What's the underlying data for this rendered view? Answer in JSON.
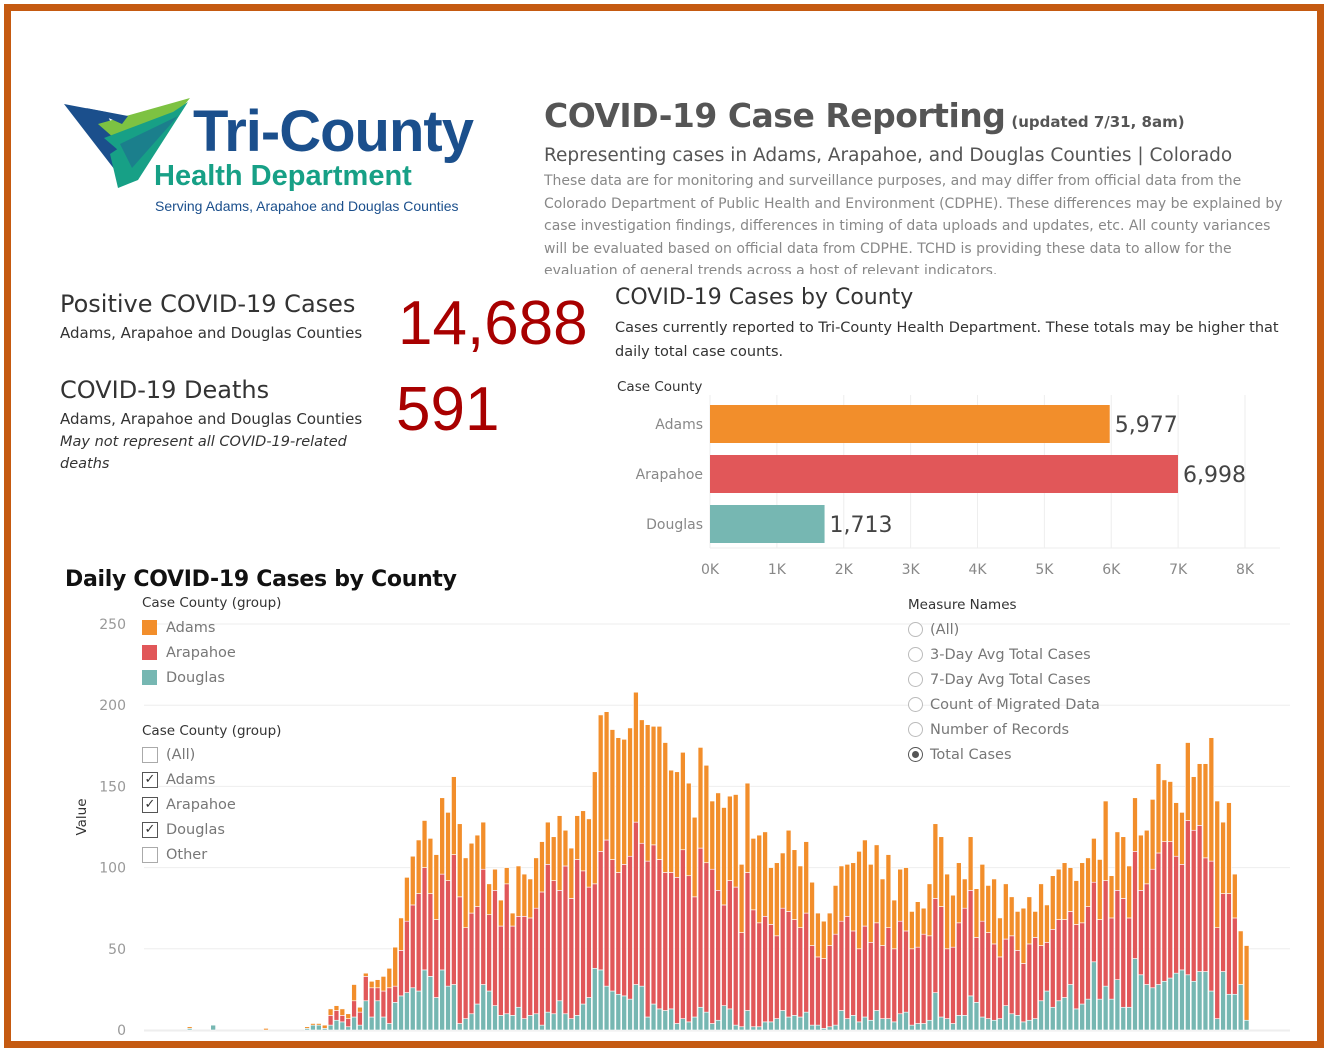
{
  "colors": {
    "border": "#C55A11",
    "kpi_value": "#A80000",
    "adams": "#F28E2B",
    "arapahoe": "#E15759",
    "douglas": "#76B7B2"
  },
  "logo": {
    "name": "Tri-County",
    "subname": "Health Department",
    "tagline": "Serving Adams, Arapahoe and Douglas Counties",
    "icon": "chevron-stripes-logo-icon"
  },
  "header": {
    "title": "COVID-19 Case Reporting",
    "updated": "(updated 7/31, 8am)",
    "subtitle": "Representing cases in Adams, Arapahoe, and Douglas Counties | Colorado",
    "description": "These data are for monitoring and surveillance purposes, and may differ from official data from the Colorado Department of Public Health and Environment (CDPHE). These differences may be explained by case investigation findings, differences in timing of data uploads and updates, etc. All county variances will be evaluated based on official data from CDPHE. TCHD is providing these data to allow for the evaluation of general trends across a host of relevant indicators."
  },
  "kpis": {
    "cases": {
      "title": "Positive COVID-19 Cases",
      "subtitle": "Adams, Arapahoe and Douglas Counties",
      "value": "14,688"
    },
    "deaths": {
      "title": "COVID-19 Deaths",
      "subtitle": "Adams, Arapahoe and Douglas Counties",
      "note": "May not represent all COVID-19-related deaths",
      "value": "591"
    }
  },
  "county_chart": {
    "title": "COVID-19 Cases by County",
    "subtitle": "Cases currently reported to Tri-County Health Department. These totals may be higher that daily total case counts."
  },
  "daily_chart": {
    "title": "Daily COVID-19  Cases by County",
    "legend": {
      "header": "Case County (group)",
      "items": [
        "Adams",
        "Arapahoe",
        "Douglas"
      ]
    },
    "filter": {
      "header": "Case County (group)",
      "items": [
        {
          "label": "(All)",
          "checked": false
        },
        {
          "label": "Adams",
          "checked": true
        },
        {
          "label": "Arapahoe",
          "checked": true
        },
        {
          "label": "Douglas",
          "checked": true
        },
        {
          "label": "Other",
          "checked": false
        }
      ]
    },
    "measure_names": {
      "header": "Measure Names",
      "options": [
        {
          "label": "(All)",
          "selected": false
        },
        {
          "label": "3-Day Avg Total Cases",
          "selected": false
        },
        {
          "label": "7-Day Avg Total Cases",
          "selected": false
        },
        {
          "label": "Count of Migrated Data",
          "selected": false
        },
        {
          "label": "Number of Records",
          "selected": false
        },
        {
          "label": "Total Cases",
          "selected": true
        }
      ]
    }
  },
  "chart_data": [
    {
      "type": "bar",
      "orientation": "horizontal",
      "title": "COVID-19 Cases by County",
      "ylabel": "Case County",
      "xlabel": "",
      "categories": [
        "Adams",
        "Arapahoe",
        "Douglas"
      ],
      "values": [
        5977,
        6998,
        1713
      ],
      "value_labels": [
        "5,977",
        "6,998",
        "1,713"
      ],
      "xlim": [
        0,
        8000
      ],
      "xticks": [
        "0K",
        "1K",
        "2K",
        "3K",
        "4K",
        "5K",
        "6K",
        "7K",
        "8K"
      ],
      "grid": true
    },
    {
      "type": "bar",
      "stacked": true,
      "title": "Daily COVID-19  Cases by County",
      "xlabel": "",
      "ylabel": "Value",
      "ylim": [
        0,
        250
      ],
      "yticks": [
        "0",
        "50",
        "100",
        "150",
        "200",
        "250"
      ],
      "grid": true,
      "legend": "top-left",
      "series": [
        {
          "name": "Douglas",
          "values": [
            0,
            0,
            0,
            0,
            0,
            0,
            1,
            0,
            0,
            0,
            3,
            0,
            0,
            0,
            0,
            0,
            0,
            0,
            0,
            0,
            0,
            0,
            0,
            0,
            0,
            0,
            1,
            3,
            3,
            1,
            3,
            6,
            5,
            2,
            8,
            3,
            18,
            8,
            18,
            8,
            4,
            17,
            21,
            23,
            26,
            24,
            37,
            33,
            20,
            37,
            27,
            28,
            4,
            7,
            10,
            16,
            28,
            24,
            15,
            9,
            10,
            9,
            14,
            7,
            9,
            10,
            3,
            11,
            10,
            18,
            10,
            7,
            9,
            16,
            20,
            38,
            37,
            27,
            24,
            22,
            21,
            19,
            28,
            27,
            8,
            16,
            13,
            12,
            13,
            4,
            7,
            5,
            8,
            14,
            11,
            4,
            6,
            15,
            13,
            3,
            2,
            12,
            2,
            2,
            5,
            5,
            7,
            12,
            8,
            9,
            8,
            11,
            3,
            3,
            1,
            2,
            3,
            12,
            7,
            9,
            5,
            8,
            6,
            12,
            7,
            7,
            5,
            10,
            11,
            3,
            4,
            4,
            6,
            23,
            8,
            7,
            4,
            9,
            9,
            21,
            17,
            8,
            7,
            6,
            7,
            15,
            10,
            9,
            5,
            6,
            7,
            18,
            24,
            14,
            18,
            20,
            28,
            13,
            16,
            19,
            42,
            19,
            27,
            19,
            31,
            14,
            14,
            44,
            34,
            28,
            26,
            28,
            30,
            32,
            35,
            37,
            34,
            30,
            36,
            36,
            24,
            7,
            36,
            22,
            22,
            28,
            6
          ],
          "_note": "bottom segment"
        },
        {
          "name": "Arapahoe",
          "values": [
            0,
            0,
            0,
            0,
            0,
            0,
            0,
            0,
            0,
            0,
            0,
            0,
            0,
            0,
            0,
            0,
            0,
            0,
            0,
            0,
            0,
            0,
            0,
            0,
            0,
            0,
            0,
            0,
            0,
            0,
            6,
            6,
            4,
            5,
            10,
            8,
            15,
            18,
            8,
            16,
            22,
            10,
            28,
            44,
            51,
            60,
            63,
            51,
            48,
            59,
            65,
            80,
            78,
            56,
            62,
            60,
            71,
            47,
            71,
            55,
            80,
            55,
            56,
            63,
            60,
            65,
            82,
            91,
            82,
            68,
            91,
            74,
            96,
            82,
            68,
            52,
            73,
            90,
            81,
            75,
            81,
            88,
            100,
            88,
            96,
            98,
            92,
            85,
            84,
            90,
            104,
            90,
            74,
            98,
            92,
            95,
            80,
            62,
            79,
            85,
            58,
            85,
            72,
            64,
            65,
            60,
            51,
            63,
            65,
            59,
            55,
            61,
            49,
            42,
            43,
            50,
            56,
            55,
            63,
            52,
            45,
            56,
            48,
            54,
            45,
            56,
            45,
            57,
            50,
            47,
            47,
            55,
            52,
            58,
            68,
            43,
            47,
            57,
            66,
            65,
            40,
            59,
            53,
            47,
            38,
            41,
            48,
            40,
            36,
            47,
            50,
            34,
            30,
            48,
            50,
            48,
            45,
            52,
            50,
            57,
            49,
            49,
            65,
            50,
            55,
            67,
            55,
            66,
            52,
            62,
            73,
            81,
            86,
            84,
            72,
            65,
            95,
            93,
            90,
            70,
            80,
            56,
            48,
            62,
            47
          ],
          "_note": "middle segment"
        },
        {
          "name": "Adams",
          "values": [
            0,
            0,
            0,
            0,
            0,
            0,
            1,
            0,
            0,
            0,
            0,
            0,
            0,
            0,
            0,
            0,
            0,
            0,
            0,
            1,
            0,
            0,
            0,
            0,
            0,
            0,
            1,
            1,
            1,
            2,
            4,
            3,
            4,
            3,
            10,
            3,
            2,
            4,
            5,
            9,
            12,
            24,
            20,
            27,
            30,
            33,
            29,
            34,
            40,
            47,
            42,
            48,
            45,
            43,
            43,
            44,
            29,
            19,
            13,
            16,
            10,
            8,
            31,
            26,
            24,
            31,
            31,
            26,
            27,
            46,
            22,
            31,
            27,
            37,
            42,
            69,
            84,
            79,
            80,
            83,
            77,
            79,
            80,
            76,
            84,
            73,
            82,
            80,
            63,
            65,
            60,
            57,
            49,
            62,
            60,
            42,
            60,
            60,
            52,
            57,
            42,
            55,
            44,
            54,
            52,
            35,
            45,
            34,
            50,
            43,
            38,
            44,
            39,
            27,
            23,
            20,
            30,
            34,
            32,
            42,
            60,
            53,
            48,
            48,
            41,
            45,
            30,
            32,
            39,
            23,
            28,
            16,
            32,
            46,
            43,
            46,
            32,
            37,
            18,
            33,
            30,
            35,
            29,
            40,
            24,
            34,
            24,
            24,
            34,
            29,
            16,
            38,
            23,
            33,
            31,
            35,
            27,
            27,
            37,
            30,
            27,
            37,
            49,
            26,
            36,
            38,
            32,
            33,
            34,
            33,
            43,
            55,
            38,
            37,
            33,
            32,
            48,
            33,
            38,
            58,
            76,
            78,
            44,
            56,
            27,
            33,
            46,
            30,
            42,
            57,
            35
          ],
          "_note": "top segment"
        }
      ]
    }
  ]
}
